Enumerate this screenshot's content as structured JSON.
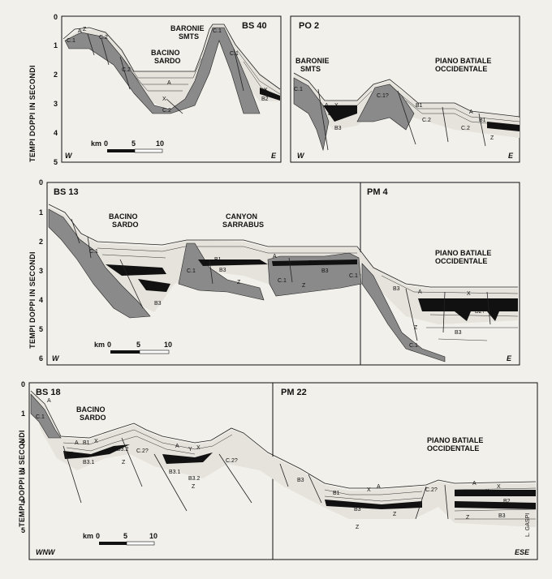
{
  "y_axis_label": "TEMPI DOPPI IN SECONDI",
  "credit": "L. GASPI",
  "scale_bar": {
    "prefix": "km",
    "ticks": [
      "0",
      "5",
      "10"
    ]
  },
  "panel1": {
    "a": {
      "title": "BS 40",
      "west": "W",
      "east": "E",
      "labels": {
        "baronie": "BARONIE",
        "smts": "SMTS",
        "bacino": "BACINO",
        "sardo": "SARDO"
      },
      "y_ticks": [
        "0",
        "1",
        "2",
        "3",
        "4",
        "5"
      ]
    },
    "b": {
      "title": "PO 2",
      "west": "W",
      "east": "E",
      "labels": {
        "baronie": "BARONIE",
        "smts": "SMTS",
        "piano": "PIANO BATIALE",
        "occ": "OCCIDENTALE"
      }
    }
  },
  "panel2": {
    "title_left": "BS 13",
    "title_right": "PM 4",
    "west": "W",
    "east": "E",
    "labels": {
      "bacino": "BACINO",
      "sardo": "SARDO",
      "canyon": "CANYON",
      "sarrabus": "SARRABUS",
      "piano": "PIANO BATIALE",
      "occ": "OCCIDENTALE"
    },
    "y_ticks": [
      "0",
      "1",
      "2",
      "3",
      "4",
      "5",
      "6"
    ]
  },
  "panel3": {
    "title_left": "BS 18",
    "title_right": "PM 22",
    "west": "WNW",
    "east": "ESE",
    "labels": {
      "bacino": "BACINO",
      "sardo": "SARDO",
      "piano": "PIANO BATIALE",
      "occ": "OCCIDENTALE"
    },
    "y_ticks": [
      "0",
      "1",
      "2",
      "3",
      "4",
      "5"
    ]
  },
  "units": {
    "A": "A",
    "X": "X",
    "Y": "Y",
    "Z": "Z",
    "B1": "B1",
    "B2": "B2",
    "B3": "B3",
    "C1": "C.1",
    "C2": "C.2",
    "C1q": "C.1?",
    "C2q": "C.2?",
    "B3_1": "B3.1",
    "B3_2": "B3.2",
    "B2q": "B2?"
  }
}
